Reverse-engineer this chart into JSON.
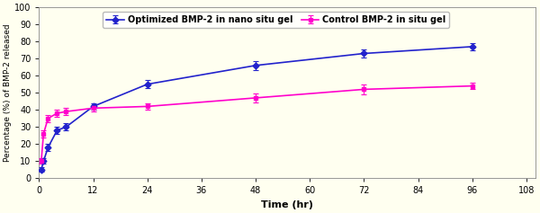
{
  "blue_x": [
    0.5,
    1,
    2,
    4,
    6,
    12,
    24,
    48,
    72,
    96
  ],
  "blue_y": [
    5,
    10,
    18,
    28,
    30,
    42,
    55,
    66,
    73,
    77
  ],
  "blue_yerr": [
    1.2,
    1.5,
    2,
    2,
    2,
    2,
    2.5,
    2.5,
    2.5,
    2
  ],
  "pink_x": [
    0.5,
    1,
    2,
    4,
    6,
    12,
    24,
    48,
    72,
    96
  ],
  "pink_y": [
    10,
    26,
    35,
    38,
    39,
    41,
    42,
    47,
    52,
    54
  ],
  "pink_yerr": [
    1.5,
    2,
    2,
    2,
    2,
    2,
    2,
    2.5,
    3,
    2
  ],
  "blue_color": "#2222cc",
  "pink_color": "#ff00cc",
  "blue_label": "Optimized BMP-2 in nano situ gel",
  "pink_label": "Control BMP-2 in situ gel",
  "xlabel": "Time (hr)",
  "ylabel": "Percentage (%) of BMP-2 released",
  "xlim": [
    0,
    110
  ],
  "ylim": [
    0,
    100
  ],
  "xticks": [
    0,
    12,
    24,
    36,
    48,
    60,
    72,
    84,
    96,
    108
  ],
  "yticks": [
    0,
    10,
    20,
    30,
    40,
    50,
    60,
    70,
    80,
    90,
    100
  ],
  "bg_color": "#fffff0"
}
